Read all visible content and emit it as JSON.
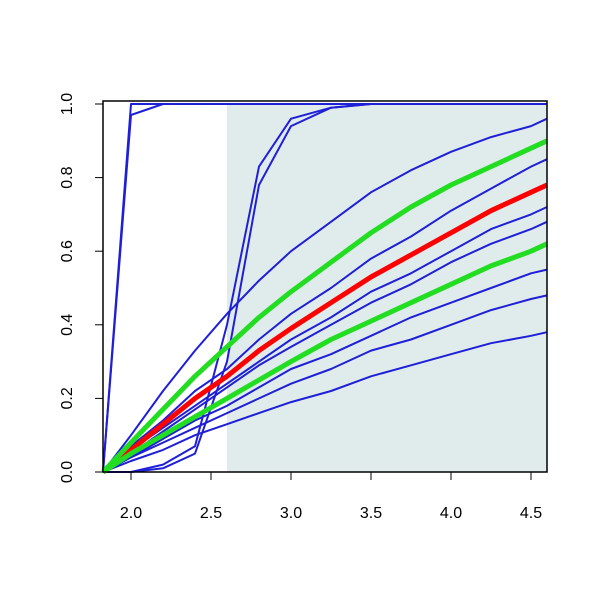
{
  "chart_data": {
    "type": "line",
    "x": [
      1.825,
      2.0,
      2.2,
      2.4,
      2.6,
      2.8,
      3.0,
      3.25,
      3.5,
      3.75,
      4.0,
      4.25,
      4.5,
      4.6
    ],
    "shaded_region": [
      2.6,
      4.6
    ],
    "shade_color": "#e0ecec",
    "xlim": [
      1.825,
      4.6
    ],
    "ylim": [
      0,
      1
    ],
    "xticks": [
      {
        "value": 2,
        "label": "2.0"
      },
      2.5,
      {
        "value": 3,
        "label": "3.0"
      },
      3.5,
      {
        "value": 4,
        "label": "4.0"
      },
      4.5
    ],
    "yticks": [
      {
        "value": 0,
        "label": "0.0"
      },
      0.2,
      0.4,
      0.6,
      0.8,
      {
        "value": 1,
        "label": "1.0"
      }
    ],
    "series": [
      {
        "color": "#1f1fd8",
        "values": [
          0,
          1,
          1,
          1,
          1,
          1,
          1,
          1,
          1,
          1,
          1,
          1,
          1,
          1
        ]
      },
      {
        "color": "#1f1fd8",
        "values": [
          0,
          0.97,
          1,
          1,
          1,
          1,
          1,
          1,
          1,
          1,
          1,
          1,
          1,
          1
        ]
      },
      {
        "color": "#1f1fd8",
        "values": [
          0,
          0,
          0.01,
          0.05,
          0.3,
          0.78,
          0.94,
          0.99,
          1,
          1,
          1,
          1,
          1,
          1
        ]
      },
      {
        "color": "#1f1fd8",
        "values": [
          0,
          0,
          0.02,
          0.07,
          0.4,
          0.83,
          0.96,
          0.99,
          1,
          1,
          1,
          1,
          1,
          1
        ]
      },
      {
        "color": "#1f1fd8",
        "values": [
          0,
          0.03,
          0.06,
          0.1,
          0.13,
          0.16,
          0.19,
          0.22,
          0.26,
          0.29,
          0.32,
          0.35,
          0.37,
          0.38
        ]
      },
      {
        "color": "#1f1fd8",
        "values": [
          0,
          0.04,
          0.08,
          0.12,
          0.16,
          0.2,
          0.24,
          0.28,
          0.33,
          0.36,
          0.4,
          0.44,
          0.47,
          0.48
        ]
      },
      {
        "color": "#1f1fd8",
        "values": [
          0,
          0.04,
          0.09,
          0.14,
          0.18,
          0.23,
          0.28,
          0.32,
          0.37,
          0.42,
          0.46,
          0.5,
          0.54,
          0.55
        ]
      },
      {
        "color": "#1f1fd8",
        "values": [
          0,
          0.05,
          0.11,
          0.17,
          0.23,
          0.29,
          0.34,
          0.4,
          0.46,
          0.51,
          0.57,
          0.62,
          0.66,
          0.68
        ]
      },
      {
        "color": "#1f1fd8",
        "values": [
          0,
          0.06,
          0.12,
          0.18,
          0.24,
          0.3,
          0.36,
          0.42,
          0.49,
          0.54,
          0.6,
          0.66,
          0.7,
          0.72
        ]
      },
      {
        "color": "#1f1fd8",
        "values": [
          0,
          0.07,
          0.14,
          0.22,
          0.28,
          0.36,
          0.43,
          0.5,
          0.58,
          0.64,
          0.71,
          0.77,
          0.83,
          0.85
        ]
      },
      {
        "color": "#1f1fd8",
        "values": [
          0,
          0.1,
          0.22,
          0.33,
          0.43,
          0.52,
          0.6,
          0.68,
          0.76,
          0.82,
          0.87,
          0.91,
          0.94,
          0.96
        ]
      },
      {
        "color": "#ff0000",
        "values": [
          0,
          0.06,
          0.13,
          0.2,
          0.26,
          0.33,
          0.39,
          0.46,
          0.53,
          0.59,
          0.65,
          0.71,
          0.76,
          0.78
        ]
      },
      {
        "color": "#22dd22",
        "values": [
          0,
          0.08,
          0.17,
          0.26,
          0.34,
          0.42,
          0.49,
          0.57,
          0.65,
          0.72,
          0.78,
          0.83,
          0.88,
          0.9
        ]
      },
      {
        "color": "#22dd22",
        "values": [
          0,
          0.05,
          0.1,
          0.15,
          0.2,
          0.25,
          0.3,
          0.36,
          0.41,
          0.46,
          0.51,
          0.56,
          0.6,
          0.62
        ]
      }
    ]
  }
}
